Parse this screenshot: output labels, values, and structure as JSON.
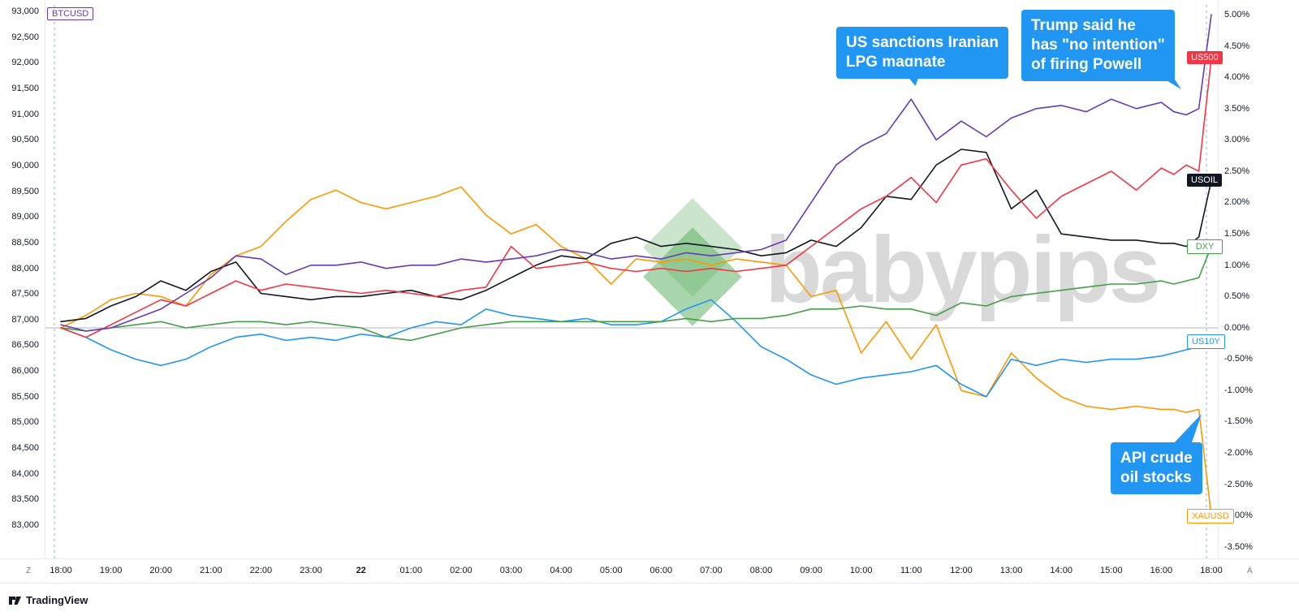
{
  "watermark": {
    "text": "babypips"
  },
  "symbol_corner_label": {
    "text": "BTCUSD",
    "color": "#673ab7"
  },
  "annotations": [
    {
      "text": "US sanctions Iranian\nLPG magnate"
    },
    {
      "text": "Trump said he\nhas \"no intention\"\nof firing Powell"
    },
    {
      "text": "API crude\noil stocks"
    }
  ],
  "left_axis": {
    "ticks": [
      "93,000",
      "92,500",
      "92,000",
      "91,500",
      "91,000",
      "90,500",
      "90,000",
      "89,500",
      "89,000",
      "88,500",
      "88,000",
      "87,500",
      "87,000",
      "86,500",
      "86,000",
      "85,500",
      "85,000",
      "84,500",
      "84,000",
      "83,500",
      "83,000"
    ]
  },
  "right_axis": {
    "ticks": [
      "5.00%",
      "4.50%",
      "4.00%",
      "3.50%",
      "3.00%",
      "2.50%",
      "2.00%",
      "1.50%",
      "1.00%",
      "0.50%",
      "0.00%",
      "-0.50%",
      "-1.00%",
      "-1.50%",
      "-2.00%",
      "-2.50%",
      "-3.00%",
      "-3.50%"
    ]
  },
  "time_axis": {
    "left_marker": "Z",
    "right_marker": "A"
  },
  "footer": {
    "brand": "TradingView"
  },
  "chart_data": {
    "type": "line",
    "title": "",
    "y_unit": "percent_change",
    "ylim": [
      -3.5,
      5.0
    ],
    "x_step_minutes": 30,
    "x_tick_labels": [
      "18:00",
      "19:00",
      "20:00",
      "21:00",
      "22:00",
      "23:00",
      "22",
      "01:00",
      "02:00",
      "03:00",
      "04:00",
      "05:00",
      "06:00",
      "07:00",
      "08:00",
      "09:00",
      "10:00",
      "11:00",
      "12:00",
      "13:00",
      "14:00",
      "15:00",
      "16:00",
      "18:00"
    ],
    "x_tick_emphasis_index": 6,
    "zero_line_color": "#b2b5be",
    "session_line_color": "#90a4c8",
    "series": [
      {
        "name": "XAUUSD",
        "color": "#ff9800",
        "axis_label": true,
        "label_style": "outline",
        "values": [
          0.0,
          0.2,
          0.45,
          0.55,
          0.5,
          0.35,
          0.85,
          1.15,
          1.3,
          1.7,
          2.05,
          2.2,
          2.0,
          1.9,
          2.0,
          2.1,
          2.25,
          1.8,
          1.5,
          1.65,
          1.3,
          1.1,
          0.7,
          1.1,
          1.05,
          1.1,
          1.0,
          1.1,
          1.05,
          1.0,
          0.5,
          0.6,
          -0.4,
          0.1,
          -0.5,
          0.05,
          -1.0,
          -1.1,
          -0.4,
          -0.8,
          -1.1,
          -1.25,
          -1.3,
          -1.25,
          -1.3,
          -1.3,
          -1.35,
          -1.3,
          -3.0
        ]
      },
      {
        "name": "US10Y",
        "color": "#2196f3",
        "axis_label": true,
        "label_style": "outline",
        "values": [
          0.0,
          -0.15,
          -0.35,
          -0.5,
          -0.6,
          -0.5,
          -0.3,
          -0.15,
          -0.1,
          -0.2,
          -0.15,
          -0.2,
          -0.1,
          -0.15,
          0.0,
          0.1,
          0.05,
          0.3,
          0.2,
          0.15,
          0.1,
          0.15,
          0.05,
          0.05,
          0.1,
          0.3,
          0.45,
          0.1,
          -0.3,
          -0.5,
          -0.75,
          -0.9,
          -0.8,
          -0.75,
          -0.7,
          -0.6,
          -0.9,
          -1.1,
          -0.5,
          -0.6,
          -0.5,
          -0.55,
          -0.5,
          -0.5,
          -0.45,
          -0.4,
          -0.35,
          -0.3,
          -0.22
        ]
      },
      {
        "name": "DXY",
        "color": "#43a047",
        "axis_label": true,
        "label_style": "outline",
        "values": [
          0.0,
          -0.05,
          0.0,
          0.05,
          0.1,
          0.0,
          0.05,
          0.1,
          0.1,
          0.05,
          0.1,
          0.05,
          0.0,
          -0.15,
          -0.2,
          -0.1,
          0.0,
          0.05,
          0.1,
          0.1,
          0.1,
          0.1,
          0.1,
          0.1,
          0.1,
          0.15,
          0.1,
          0.15,
          0.15,
          0.2,
          0.3,
          0.3,
          0.35,
          0.3,
          0.3,
          0.2,
          0.4,
          0.35,
          0.5,
          0.55,
          0.6,
          0.65,
          0.7,
          0.7,
          0.75,
          0.7,
          0.75,
          0.8,
          1.3
        ]
      },
      {
        "name": "USOIL",
        "color": "#131722",
        "axis_label": true,
        "label_style": "filled",
        "values": [
          0.1,
          0.15,
          0.35,
          0.5,
          0.75,
          0.6,
          0.9,
          1.05,
          0.55,
          0.5,
          0.45,
          0.5,
          0.5,
          0.55,
          0.6,
          0.5,
          0.45,
          0.6,
          0.8,
          1.0,
          1.15,
          1.1,
          1.35,
          1.45,
          1.3,
          1.35,
          1.3,
          1.25,
          1.15,
          1.2,
          1.4,
          1.3,
          1.6,
          2.1,
          2.05,
          2.6,
          2.85,
          2.8,
          1.9,
          2.2,
          1.5,
          1.45,
          1.4,
          1.4,
          1.35,
          1.35,
          1.3,
          1.45,
          2.35
        ]
      },
      {
        "name": "US500",
        "color": "#f23645",
        "axis_label": true,
        "label_style": "filled",
        "values": [
          0.0,
          -0.15,
          0.05,
          0.25,
          0.45,
          0.35,
          0.55,
          0.75,
          0.6,
          0.7,
          0.65,
          0.6,
          0.55,
          0.6,
          0.55,
          0.5,
          0.6,
          0.65,
          1.3,
          0.95,
          1.0,
          1.05,
          0.95,
          0.9,
          0.95,
          0.9,
          0.95,
          0.9,
          0.95,
          1.0,
          1.3,
          1.6,
          1.9,
          2.1,
          2.4,
          2.0,
          2.6,
          2.7,
          2.2,
          1.75,
          2.1,
          2.3,
          2.5,
          2.2,
          2.55,
          2.45,
          2.6,
          2.5,
          4.3
        ]
      },
      {
        "name": "BTCUSD",
        "color": "#673ab7",
        "axis_label": false,
        "label_style": "outline",
        "values": [
          0.05,
          -0.05,
          0.0,
          0.15,
          0.3,
          0.55,
          0.8,
          1.15,
          1.1,
          0.85,
          1.0,
          1.0,
          1.05,
          0.95,
          1.0,
          1.0,
          1.1,
          1.05,
          1.1,
          1.15,
          1.25,
          1.2,
          1.1,
          1.15,
          1.1,
          1.2,
          1.15,
          1.2,
          1.25,
          1.4,
          2.0,
          2.6,
          2.9,
          3.1,
          3.65,
          3.0,
          3.3,
          3.05,
          3.35,
          3.5,
          3.55,
          3.45,
          3.65,
          3.5,
          3.6,
          3.45,
          3.4,
          3.5,
          5.0
        ]
      }
    ]
  }
}
